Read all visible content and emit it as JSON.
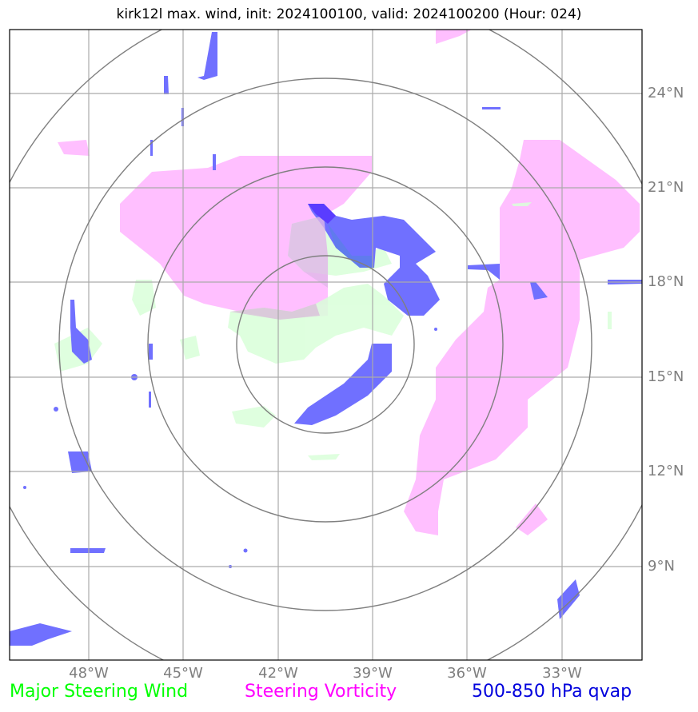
{
  "title": "kirk12l max. wind, init: 2024100100, valid: 2024100200 (Hour: 024)",
  "axes": {
    "lon_labels": [
      "48°W",
      "45°W",
      "42°W",
      "39°W",
      "36°W",
      "33°W"
    ],
    "lat_labels": [
      "24°N",
      "21°N",
      "18°N",
      "15°N",
      "12°N",
      "9°N"
    ],
    "lon_values": [
      -48,
      -45,
      -42,
      -39,
      -36,
      -33
    ],
    "lat_values": [
      24,
      21,
      18,
      15,
      12,
      9
    ],
    "grid_color": "#aaaaaa",
    "ring_color": "#7f7f7f"
  },
  "legend": {
    "wind": {
      "label": "Major Steering Wind",
      "color": "#00ff00"
    },
    "vorticity": {
      "label": "Steering Vorticity",
      "color": "#ff00ff"
    },
    "qvap": {
      "label": "500-850 hPa qvap",
      "color": "#0000dd"
    }
  },
  "layers": {
    "vorticity_color": "#ffbfff",
    "wind_color": "#d9ffd9",
    "qvap_color": "#7070ff"
  }
}
